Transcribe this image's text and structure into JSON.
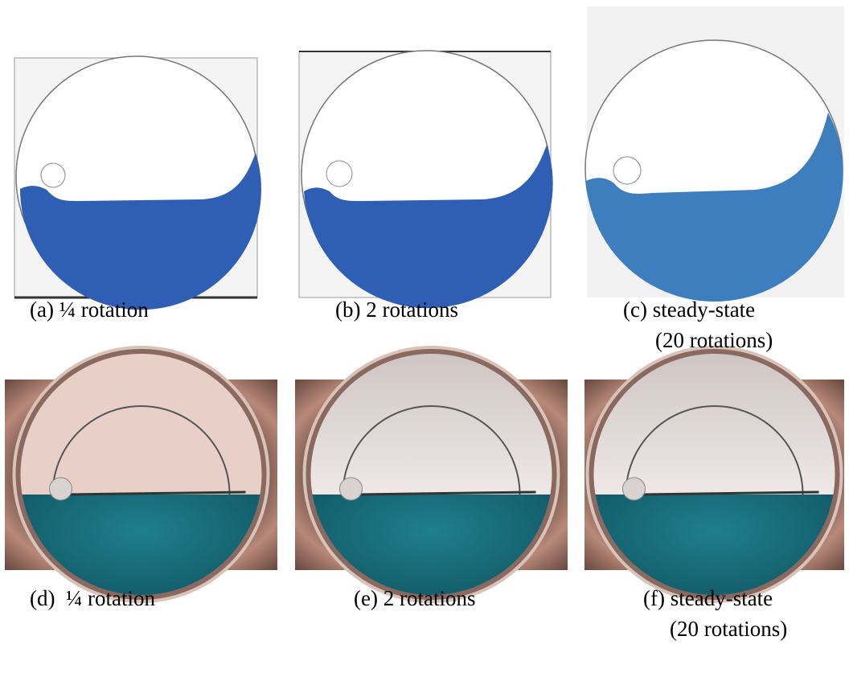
{
  "panels": [
    {
      "lines": [
        "(a) ¼ rotation"
      ]
    },
    {
      "lines": [
        "(b) 2 rotations"
      ]
    },
    {
      "lines": [
        "(c) steady-state",
        "(20 rotations)"
      ]
    },
    {
      "lines": [
        "(d)  ¼ rotation"
      ]
    },
    {
      "lines": [
        "(e) 2 rotations"
      ]
    },
    {
      "lines": [
        "(f) steady-state",
        "(20 rotations)"
      ]
    }
  ]
}
